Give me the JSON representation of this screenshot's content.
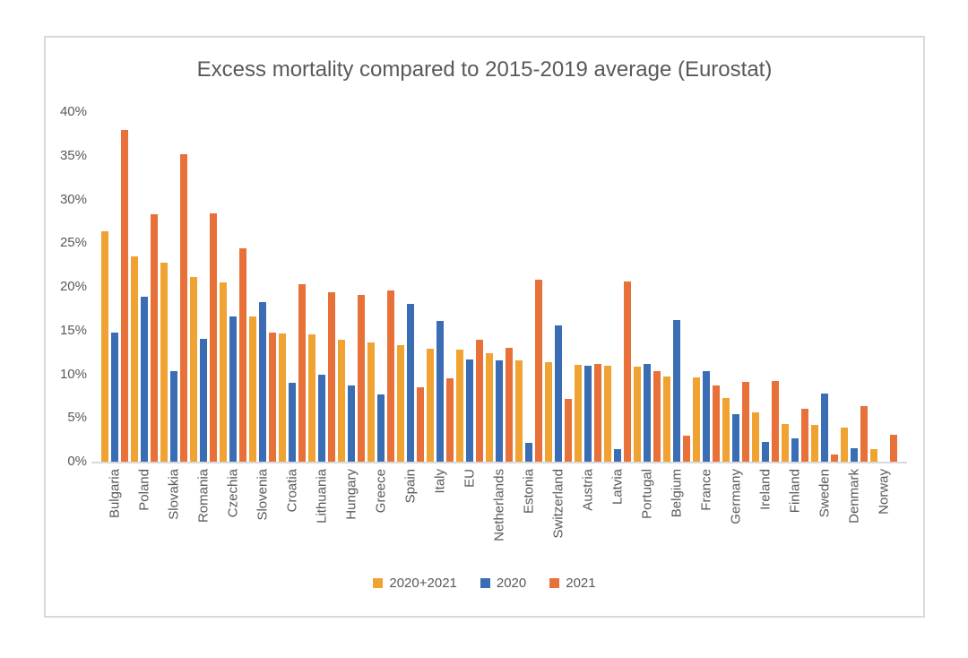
{
  "chart_data": {
    "type": "bar",
    "title": "Excess mortality compared to 2015-2019 average (Eurostat)",
    "xlabel": "",
    "ylabel": "",
    "ylim": [
      0,
      40
    ],
    "y_tick_step": 5,
    "y_tick_suffix": "%",
    "grid": false,
    "legend_position": "bottom",
    "text_color": "#595959",
    "axis_line_color": "#D9D9D9",
    "categories": [
      "Bulgaria",
      "Poland",
      "Slovakia",
      "Romania",
      "Czechia",
      "Slovenia",
      "Croatia",
      "Lithuania",
      "Hungary",
      "Greece",
      "Spain",
      "Italy",
      "EU",
      "Netherlands",
      "Estonia",
      "Switzerland",
      "Austria",
      "Latvia",
      "Portugal",
      "Belgium",
      "France",
      "Germany",
      "Ireland",
      "Finland",
      "Sweden",
      "Denmark",
      "Norway"
    ],
    "series": [
      {
        "name": "2020+2021",
        "color": "#F0A333",
        "values": [
          26.4,
          23.5,
          22.8,
          21.1,
          20.5,
          16.6,
          14.7,
          14.6,
          13.9,
          13.6,
          13.3,
          12.9,
          12.8,
          12.4,
          11.6,
          11.4,
          11.1,
          11.0,
          10.9,
          9.7,
          9.6,
          7.3,
          5.6,
          4.3,
          4.2,
          3.9,
          1.4
        ]
      },
      {
        "name": "2020",
        "color": "#3A6DB3",
        "values": [
          14.8,
          18.9,
          10.4,
          14.1,
          16.6,
          18.3,
          9.0,
          9.9,
          8.7,
          7.7,
          18.1,
          16.1,
          11.7,
          11.6,
          2.2,
          15.6,
          11.0,
          1.4,
          11.2,
          16.2,
          10.4,
          5.4,
          2.3,
          2.7,
          7.8,
          1.5,
          0
        ]
      },
      {
        "name": "2021",
        "color": "#E87139",
        "values": [
          38.0,
          28.3,
          35.2,
          28.4,
          24.4,
          14.8,
          20.3,
          19.4,
          19.1,
          19.6,
          8.5,
          9.5,
          13.9,
          13.0,
          20.8,
          7.2,
          11.2,
          20.6,
          10.4,
          3.0,
          8.7,
          9.1,
          9.2,
          6.1,
          0.8,
          6.4,
          3.1
        ]
      }
    ]
  }
}
